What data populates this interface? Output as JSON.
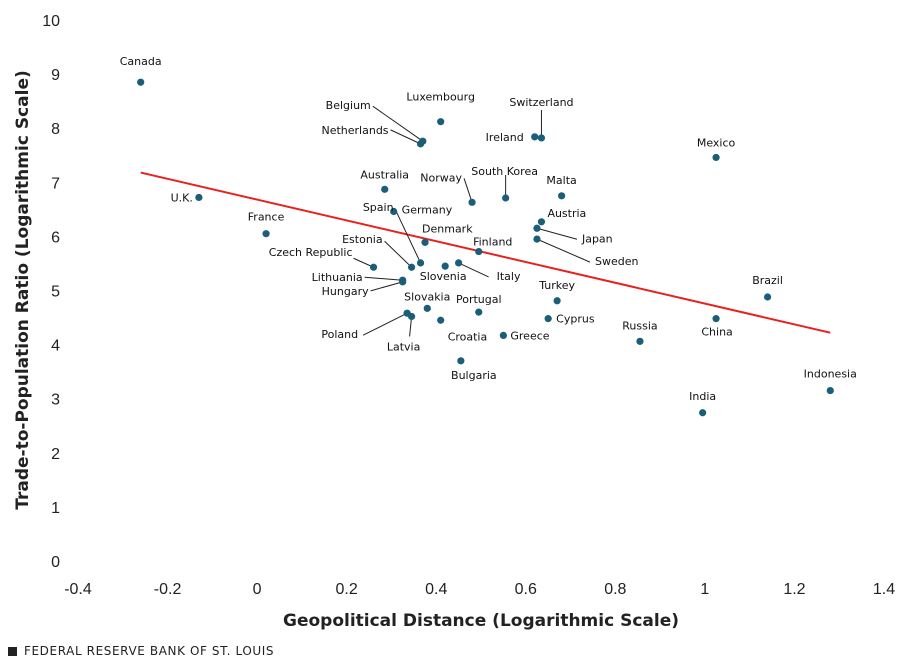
{
  "chart_data": {
    "type": "scatter",
    "title": "",
    "xlabel": "Geopolitical Distance (Logarithmic Scale)",
    "ylabel": "Trade-to-Population Ratio (Logarithmic Scale)",
    "xlim": [
      -0.4,
      1.4
    ],
    "ylim": [
      0,
      10
    ],
    "xticks": [
      "-0.4",
      "-0.2",
      "0",
      "0.2",
      "0.4",
      "0.6",
      "0.8",
      "1",
      "1.2",
      "1.4"
    ],
    "yticks": [
      "0",
      "1",
      "2",
      "3",
      "4",
      "5",
      "6",
      "7",
      "8",
      "9",
      "10"
    ],
    "grid": false,
    "point_color": "#1b5e78",
    "trend_color": "#e8211d",
    "trendline": {
      "x": [
        -0.26,
        1.28
      ],
      "y": [
        7.18,
        4.22
      ]
    },
    "points": [
      {
        "label": "Canada",
        "x": -0.26,
        "y": 8.85
      },
      {
        "label": "U.K.",
        "x": -0.13,
        "y": 6.72
      },
      {
        "label": "France",
        "x": 0.02,
        "y": 6.05
      },
      {
        "label": "Czech Republic",
        "x": 0.26,
        "y": 5.43
      },
      {
        "label": "Australia",
        "x": 0.285,
        "y": 6.87
      },
      {
        "label": "Spain",
        "x": 0.365,
        "y": 5.51
      },
      {
        "label": "Germany",
        "x": 0.305,
        "y": 6.46
      },
      {
        "label": "Estonia",
        "x": 0.345,
        "y": 5.43
      },
      {
        "label": "Denmark",
        "x": 0.375,
        "y": 5.89
      },
      {
        "label": "Lithuania",
        "x": 0.325,
        "y": 5.19
      },
      {
        "label": "Hungary",
        "x": 0.325,
        "y": 5.16
      },
      {
        "label": "Poland",
        "x": 0.335,
        "y": 4.58
      },
      {
        "label": "Latvia",
        "x": 0.345,
        "y": 4.52
      },
      {
        "label": "Slovakia",
        "x": 0.38,
        "y": 4.67
      },
      {
        "label": "Croatia",
        "x": 0.41,
        "y": 4.45
      },
      {
        "label": "Bulgaria",
        "x": 0.455,
        "y": 3.7
      },
      {
        "label": "Slovenia",
        "x": 0.42,
        "y": 5.45
      },
      {
        "label": "Italy",
        "x": 0.45,
        "y": 5.51
      },
      {
        "label": "Finland",
        "x": 0.495,
        "y": 5.72
      },
      {
        "label": "Portugal",
        "x": 0.495,
        "y": 4.6
      },
      {
        "label": "Greece",
        "x": 0.55,
        "y": 4.17
      },
      {
        "label": "Belgium",
        "x": 0.37,
        "y": 7.76
      },
      {
        "label": "Netherlands",
        "x": 0.365,
        "y": 7.71
      },
      {
        "label": "Luxembourg",
        "x": 0.41,
        "y": 8.12
      },
      {
        "label": "Norway",
        "x": 0.48,
        "y": 6.63
      },
      {
        "label": "South Korea",
        "x": 0.555,
        "y": 6.71
      },
      {
        "label": "Switzerland",
        "x": 0.635,
        "y": 7.82
      },
      {
        "label": "Ireland",
        "x": 0.62,
        "y": 7.84
      },
      {
        "label": "Malta",
        "x": 0.68,
        "y": 6.75
      },
      {
        "label": "Austria",
        "x": 0.635,
        "y": 6.27
      },
      {
        "label": "Japan",
        "x": 0.625,
        "y": 6.15
      },
      {
        "label": "Sweden",
        "x": 0.625,
        "y": 5.95
      },
      {
        "label": "Turkey",
        "x": 0.67,
        "y": 4.81
      },
      {
        "label": "Cyprus",
        "x": 0.65,
        "y": 4.48
      },
      {
        "label": "Russia",
        "x": 0.855,
        "y": 4.06
      },
      {
        "label": "Mexico",
        "x": 1.025,
        "y": 7.46
      },
      {
        "label": "China",
        "x": 1.025,
        "y": 4.48
      },
      {
        "label": "India",
        "x": 0.995,
        "y": 2.74
      },
      {
        "label": "Brazil",
        "x": 1.14,
        "y": 4.88
      },
      {
        "label": "Indonesia",
        "x": 1.28,
        "y": 3.15
      }
    ]
  },
  "footer": {
    "source": "FEDERAL RESERVE BANK OF ST. LOUIS"
  }
}
